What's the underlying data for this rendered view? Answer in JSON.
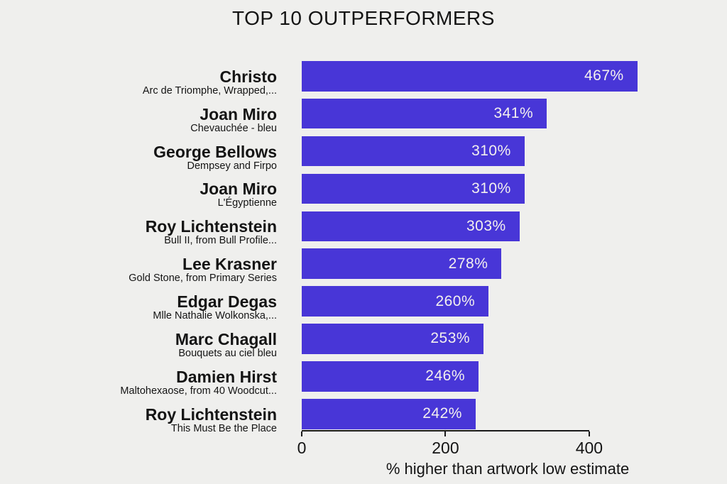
{
  "title": "TOP 10 OUTPERFORMERS",
  "colors": {
    "background": "#efefed",
    "bar": "#4836d7",
    "text": "#141414",
    "value_text": "#f3f0ee",
    "axis": "#1a1a1a"
  },
  "chart_data": {
    "type": "bar",
    "orientation": "horizontal",
    "title": "TOP 10 OUTPERFORMERS",
    "xlabel": "% higher than artwork low estimate",
    "ylabel": "",
    "xlim": [
      0,
      573
    ],
    "xticks": [
      0,
      200,
      400
    ],
    "grid": false,
    "legend": false,
    "value_suffix": "%",
    "rows": [
      {
        "artist": "Christo",
        "artwork": "Arc de Triomphe, Wrapped,...",
        "value": 467,
        "label": "467%"
      },
      {
        "artist": "Joan Miro",
        "artwork": "Chevauchée - bleu",
        "value": 341,
        "label": "341%"
      },
      {
        "artist": "George Bellows",
        "artwork": "Dempsey and Firpo",
        "value": 310,
        "label": "310%"
      },
      {
        "artist": "Joan Miro",
        "artwork": "L'Égyptienne",
        "value": 310,
        "label": "310%"
      },
      {
        "artist": "Roy Lichtenstein",
        "artwork": "Bull II, from Bull Profile...",
        "value": 303,
        "label": "303%"
      },
      {
        "artist": "Lee Krasner",
        "artwork": "Gold Stone, from Primary Series",
        "value": 278,
        "label": "278%"
      },
      {
        "artist": "Edgar Degas",
        "artwork": "Mlle Nathalie Wolkonska,...",
        "value": 260,
        "label": "260%"
      },
      {
        "artist": "Marc Chagall",
        "artwork": "Bouquets au ciel bleu",
        "value": 253,
        "label": "253%"
      },
      {
        "artist": "Damien Hirst",
        "artwork": "Maltohexaose, from 40 Woodcut...",
        "value": 246,
        "label": "246%"
      },
      {
        "artist": "Roy Lichtenstein",
        "artwork": "This Must Be the Place",
        "value": 242,
        "label": "242%"
      }
    ]
  }
}
